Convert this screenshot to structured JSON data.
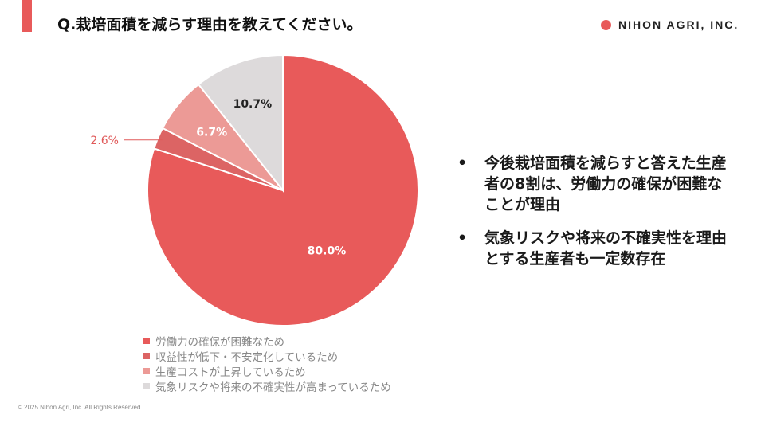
{
  "header": {
    "title": "Q.栽培面積を減らす理由を教えてください。",
    "logo_text": "NIHON AGRI, INC."
  },
  "colors": {
    "accent": "#e85a5a",
    "slices": [
      "#e85a5a",
      "#dc6464",
      "#ec9a96",
      "#dddadb"
    ]
  },
  "chart_data": {
    "type": "pie",
    "title": "",
    "slices": [
      {
        "label": "労働力の確保が困難なため",
        "value": 80.0,
        "value_label": "80.0%"
      },
      {
        "label": "収益性が低下・不安定化しているため",
        "value": 2.6,
        "value_label": "2.6%"
      },
      {
        "label": "生産コストが上昇しているため",
        "value": 6.7,
        "value_label": "6.7%"
      },
      {
        "label": "気象リスクや将来の不確実性が高まっているため",
        "value": 10.7,
        "value_label": "10.7%"
      }
    ],
    "start": "12 o'clock",
    "direction": "clockwise",
    "legend_position": "bottom-left"
  },
  "bullets": [
    "今後栽培面積を減らすと答えた生産者の8割は、労働力の確保が困難なことが理由",
    "気象リスクや将来の不確実性を理由とする生産者も一定数存在"
  ],
  "bullet_symbol": "•",
  "footer": {
    "copyright": "© 2025 Nihon Agri, Inc. All Rights Reserved."
  }
}
